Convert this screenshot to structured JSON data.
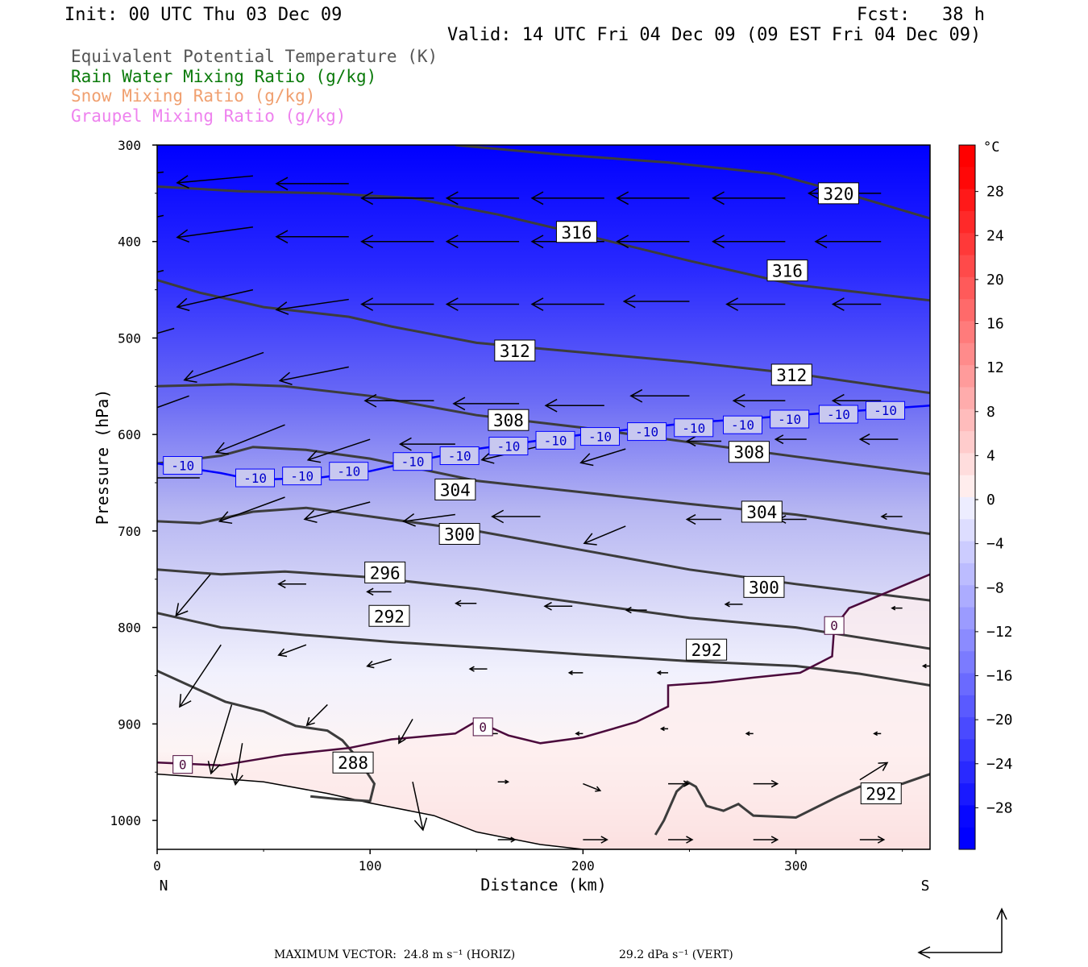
{
  "header": {
    "init": "Init: 00 UTC Thu 03 Dec 09",
    "fcst": "Fcst:   38 h",
    "valid": "Valid: 14 UTC Fri 04 Dec 09 (09 EST Fri 04 Dec 09)"
  },
  "legend": [
    {
      "label": "Equivalent Potential Temperature (K)",
      "color": "#555555"
    },
    {
      "label": "Rain Water Mixing Ratio (g/kg)",
      "color": "#0a7a0a"
    },
    {
      "label": "Snow Mixing Ratio (g/kg)",
      "color": "#f0a070"
    },
    {
      "label": "Graupel Mixing Ratio (g/kg)",
      "color": "#ee82ee"
    }
  ],
  "footer": {
    "max_vector": "MAXIMUM VECTOR:  24.8 m s⁻¹ (HORIZ)",
    "max_vertical": "29.2 dPa s⁻¹ (VERT)"
  },
  "chart_data": {
    "type": "contour",
    "xlabel": "Distance (km)",
    "ylabel": "Pressure (hPa)",
    "xlim": [
      0,
      363
    ],
    "ylim": [
      1030,
      300
    ],
    "x_ticks": [
      0,
      100,
      200,
      300
    ],
    "y_ticks": [
      300,
      400,
      500,
      600,
      700,
      800,
      900,
      1000
    ],
    "x_end_labels": {
      "left": "N",
      "right": "S"
    },
    "colorbar": {
      "unit": "°C",
      "ticks": [
        28,
        24,
        20,
        16,
        12,
        8,
        4,
        0,
        -4,
        -8,
        -12,
        -16,
        -20,
        -24,
        -28
      ],
      "cold_color": "#0000ff",
      "warm_color": "#ff0000"
    },
    "theta_e_contours": [
      {
        "label": "288",
        "points": [
          [
            0,
            845
          ],
          [
            15,
            860
          ],
          [
            32,
            877
          ],
          [
            50,
            887
          ],
          [
            65,
            902
          ],
          [
            80,
            907
          ],
          [
            87,
            917
          ],
          [
            94,
            935
          ],
          [
            102,
            962
          ],
          [
            100,
            980
          ],
          [
            85,
            978
          ],
          [
            72,
            975
          ]
        ]
      },
      {
        "label": "292",
        "points": [
          [
            0,
            785
          ],
          [
            30,
            800
          ],
          [
            70,
            808
          ],
          [
            110,
            815
          ],
          [
            160,
            822
          ],
          [
            200,
            828
          ],
          [
            250,
            835
          ],
          [
            300,
            840
          ],
          [
            330,
            848
          ],
          [
            363,
            860
          ]
        ]
      },
      {
        "label": "292",
        "points": [
          [
            234,
            1015
          ],
          [
            238,
            1000
          ],
          [
            244,
            970
          ],
          [
            249,
            960
          ],
          [
            253,
            965
          ],
          [
            258,
            985
          ],
          [
            266,
            990
          ],
          [
            273,
            983
          ],
          [
            280,
            995
          ],
          [
            300,
            997
          ],
          [
            320,
            975
          ],
          [
            330,
            965
          ],
          [
            350,
            962
          ],
          [
            363,
            952
          ]
        ]
      },
      {
        "label": "296",
        "points": [
          [
            0,
            740
          ],
          [
            30,
            745
          ],
          [
            60,
            742
          ],
          [
            100,
            748
          ],
          [
            150,
            760
          ],
          [
            200,
            775
          ],
          [
            250,
            790
          ],
          [
            300,
            800
          ],
          [
            363,
            822
          ]
        ]
      },
      {
        "label": "300",
        "points": [
          [
            0,
            690
          ],
          [
            20,
            692
          ],
          [
            45,
            680
          ],
          [
            70,
            676
          ],
          [
            100,
            685
          ],
          [
            150,
            700
          ],
          [
            200,
            720
          ],
          [
            250,
            740
          ],
          [
            300,
            755
          ],
          [
            363,
            772
          ]
        ]
      },
      {
        "label": "304",
        "points": [
          [
            0,
            630
          ],
          [
            30,
            622
          ],
          [
            45,
            613
          ],
          [
            70,
            616
          ],
          [
            100,
            625
          ],
          [
            150,
            648
          ],
          [
            200,
            660
          ],
          [
            250,
            672
          ],
          [
            300,
            683
          ],
          [
            363,
            703
          ]
        ]
      },
      {
        "label": "308",
        "points": [
          [
            0,
            550
          ],
          [
            35,
            548
          ],
          [
            60,
            550
          ],
          [
            100,
            560
          ],
          [
            150,
            580
          ],
          [
            200,
            593
          ],
          [
            250,
            608
          ],
          [
            300,
            623
          ],
          [
            363,
            641
          ]
        ]
      },
      {
        "label": "312",
        "points": [
          [
            0,
            440
          ],
          [
            20,
            453
          ],
          [
            50,
            468
          ],
          [
            90,
            478
          ],
          [
            110,
            488
          ],
          [
            150,
            505
          ],
          [
            200,
            515
          ],
          [
            250,
            525
          ],
          [
            300,
            537
          ],
          [
            363,
            557
          ]
        ]
      },
      {
        "label": "316",
        "points": [
          [
            0,
            343
          ],
          [
            40,
            348
          ],
          [
            80,
            350
          ],
          [
            120,
            355
          ],
          [
            160,
            372
          ],
          [
            200,
            393
          ],
          [
            250,
            420
          ],
          [
            300,
            445
          ],
          [
            363,
            461
          ]
        ]
      },
      {
        "label": "320",
        "points": [
          [
            140,
            300
          ],
          [
            190,
            310
          ],
          [
            240,
            318
          ],
          [
            290,
            330
          ],
          [
            320,
            348
          ],
          [
            363,
            376
          ]
        ]
      }
    ],
    "temperature_contours": [
      {
        "label": "-10",
        "color": "#0000ff",
        "points": [
          [
            0,
            630
          ],
          [
            30,
            640
          ],
          [
            45,
            647
          ],
          [
            75,
            645
          ],
          [
            100,
            638
          ],
          [
            120,
            628
          ],
          [
            150,
            615
          ],
          [
            200,
            600
          ],
          [
            250,
            588
          ],
          [
            300,
            580
          ],
          [
            363,
            570
          ]
        ]
      },
      {
        "label": "0",
        "color": "#4b0a3c",
        "points": [
          [
            0,
            940
          ],
          [
            30,
            943
          ],
          [
            60,
            932
          ],
          [
            90,
            925
          ],
          [
            110,
            916
          ],
          [
            140,
            910
          ],
          [
            150,
            897
          ],
          [
            165,
            912
          ],
          [
            180,
            920
          ],
          [
            200,
            914
          ],
          [
            225,
            898
          ],
          [
            240,
            882
          ],
          [
            240,
            860
          ],
          [
            260,
            857
          ],
          [
            280,
            852
          ],
          [
            302,
            847
          ],
          [
            317,
            830
          ],
          [
            318,
            800
          ],
          [
            325,
            780
          ],
          [
            363,
            745
          ]
        ]
      }
    ],
    "surface_pressure": [
      [
        0,
        952
      ],
      [
        20,
        955
      ],
      [
        50,
        960
      ],
      [
        80,
        972
      ],
      [
        100,
        982
      ],
      [
        130,
        995
      ],
      [
        150,
        1012
      ],
      [
        180,
        1025
      ],
      [
        200,
        1030
      ],
      [
        250,
        1030
      ],
      [
        300,
        1030
      ],
      [
        363,
        1030
      ]
    ],
    "wind_vectors": [
      [
        3,
        328,
        -24.8,
        3
      ],
      [
        45,
        332,
        -22,
        2
      ],
      [
        90,
        340,
        -21,
        0
      ],
      [
        130,
        355,
        -21,
        0
      ],
      [
        170,
        355,
        -21,
        0
      ],
      [
        210,
        355,
        -21,
        0
      ],
      [
        250,
        355,
        -21,
        0
      ],
      [
        295,
        355,
        -21,
        0
      ],
      [
        340,
        350,
        -21,
        0
      ],
      [
        3,
        373,
        -23,
        5
      ],
      [
        45,
        385,
        -22,
        3
      ],
      [
        90,
        395,
        -21,
        0
      ],
      [
        130,
        400,
        -21,
        0
      ],
      [
        170,
        400,
        -21,
        0
      ],
      [
        210,
        400,
        -21,
        0
      ],
      [
        250,
        400,
        -21,
        0
      ],
      [
        295,
        400,
        -21,
        0
      ],
      [
        340,
        400,
        -19,
        0
      ],
      [
        3,
        430,
        -24,
        6
      ],
      [
        45,
        450,
        -22,
        5
      ],
      [
        90,
        460,
        -21,
        3
      ],
      [
        130,
        465,
        -21,
        0
      ],
      [
        170,
        465,
        -21,
        0
      ],
      [
        210,
        465,
        -21,
        0
      ],
      [
        250,
        462,
        -19,
        0
      ],
      [
        295,
        465,
        -17,
        0
      ],
      [
        340,
        465,
        -14,
        0
      ],
      [
        8,
        490,
        -24,
        7
      ],
      [
        50,
        515,
        -23,
        8
      ],
      [
        90,
        530,
        -20,
        4
      ],
      [
        130,
        565,
        -20,
        0
      ],
      [
        170,
        568,
        -19,
        0
      ],
      [
        210,
        570,
        -17,
        0
      ],
      [
        250,
        560,
        -17,
        0
      ],
      [
        295,
        565,
        -15,
        0
      ],
      [
        340,
        565,
        -14,
        0
      ],
      [
        15,
        560,
        -22,
        8
      ],
      [
        60,
        590,
        -20,
        8
      ],
      [
        100,
        605,
        -18,
        6
      ],
      [
        140,
        610,
        -16,
        0
      ],
      [
        180,
        612,
        -17,
        4
      ],
      [
        220,
        615,
        -13,
        4
      ],
      [
        265,
        607,
        -10,
        0
      ],
      [
        305,
        605,
        -9,
        0
      ],
      [
        348,
        605,
        -11,
        0
      ],
      [
        20,
        645,
        -17,
        0
      ],
      [
        60,
        665,
        -19,
        7
      ],
      [
        100,
        670,
        -19,
        5
      ],
      [
        140,
        683,
        -15,
        2
      ],
      [
        180,
        685,
        -14,
        0
      ],
      [
        220,
        695,
        -12,
        5
      ],
      [
        265,
        688,
        -10,
        0
      ],
      [
        305,
        688,
        -8,
        0
      ],
      [
        350,
        685,
        -6,
        0
      ],
      [
        25,
        745,
        -10,
        12
      ],
      [
        70,
        755,
        -8,
        0
      ],
      [
        110,
        763,
        -7,
        0
      ],
      [
        150,
        775,
        -6,
        0
      ],
      [
        195,
        778,
        -8,
        0
      ],
      [
        230,
        782,
        -6,
        0
      ],
      [
        275,
        776,
        -5,
        0
      ],
      [
        350,
        780,
        -3,
        0
      ],
      [
        30,
        818,
        -12,
        18
      ],
      [
        70,
        818,
        -8,
        3
      ],
      [
        110,
        833,
        -7,
        2
      ],
      [
        155,
        843,
        -5,
        0
      ],
      [
        200,
        847,
        -4,
        0
      ],
      [
        240,
        847,
        -3,
        0
      ],
      [
        363,
        840,
        -2,
        0
      ],
      [
        35,
        880,
        -6,
        20
      ],
      [
        80,
        880,
        -6,
        6
      ],
      [
        120,
        895,
        -4,
        7
      ],
      [
        160,
        910,
        -3,
        0
      ],
      [
        200,
        910,
        -2,
        0
      ],
      [
        240,
        905,
        -2,
        0
      ],
      [
        280,
        910,
        -2,
        0
      ],
      [
        340,
        910,
        -2,
        0
      ],
      [
        40,
        920,
        -2,
        12
      ],
      [
        120,
        960,
        3,
        14
      ],
      [
        160,
        960,
        3,
        0
      ],
      [
        200,
        962,
        5,
        2
      ],
      [
        240,
        962,
        6,
        0
      ],
      [
        280,
        962,
        7,
        0
      ],
      [
        330,
        958,
        8,
        -5
      ],
      [
        160,
        1020,
        5,
        0
      ],
      [
        200,
        1020,
        7,
        0
      ],
      [
        240,
        1020,
        7,
        0
      ],
      [
        280,
        1020,
        7,
        0
      ],
      [
        330,
        1020,
        7,
        0
      ]
    ]
  }
}
